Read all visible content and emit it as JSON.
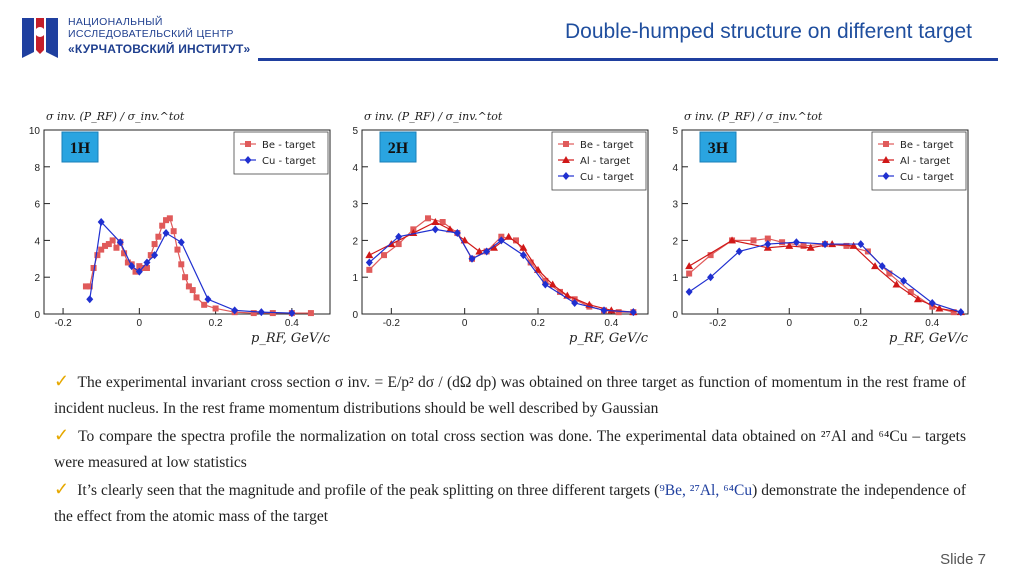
{
  "header": {
    "org_line1": "НАЦИОНАЛЬНЫЙ",
    "org_line2": "ИССЛЕДОВАТЕЛЬСКИЙ ЦЕНТР",
    "org_line3": "«КУРЧАТОВСКИЙ ИНСТИТУТ»",
    "title": "Double-humped structure on different target"
  },
  "chart_data": [
    {
      "type": "line",
      "panel_label": "1H",
      "ylabel": "σ inv. (P_RF) / σ_inv.^tot",
      "xlabel": "p_RF, GeV/c",
      "xlim": [
        -0.25,
        0.5
      ],
      "ylim": [
        0,
        10
      ],
      "xticks": [
        "-0.2",
        "0",
        "0.2",
        "0.4"
      ],
      "yticks": [
        "0",
        "2",
        "4",
        "6",
        "8",
        "10"
      ],
      "legend": "top-right",
      "series": [
        {
          "name": "Be - target",
          "color": "#e05a5a",
          "marker": "square",
          "x": [
            -0.14,
            -0.13,
            -0.12,
            -0.11,
            -0.1,
            -0.09,
            -0.08,
            -0.07,
            -0.06,
            -0.05,
            -0.04,
            -0.03,
            -0.02,
            -0.01,
            0.0,
            0.01,
            0.02,
            0.03,
            0.04,
            0.05,
            0.06,
            0.07,
            0.08,
            0.09,
            0.1,
            0.11,
            0.12,
            0.13,
            0.14,
            0.15,
            0.17,
            0.2,
            0.25,
            0.3,
            0.35,
            0.4,
            0.45
          ],
          "y": [
            1.5,
            1.5,
            2.5,
            3.2,
            3.5,
            3.7,
            3.8,
            4.0,
            3.6,
            3.9,
            3.3,
            2.8,
            2.7,
            2.3,
            2.6,
            2.5,
            2.5,
            3.2,
            3.8,
            4.2,
            4.8,
            5.1,
            5.2,
            4.5,
            3.5,
            2.7,
            2.0,
            1.5,
            1.3,
            0.9,
            0.5,
            0.3,
            0.1,
            0.05,
            0.05,
            0.05,
            0.05
          ]
        },
        {
          "name": "Cu - target",
          "color": "#2030d0",
          "marker": "diamond",
          "x": [
            -0.13,
            -0.1,
            -0.05,
            -0.02,
            0.0,
            0.02,
            0.04,
            0.07,
            0.11,
            0.18,
            0.25,
            0.32,
            0.4
          ],
          "y": [
            0.8,
            5.0,
            3.9,
            2.6,
            2.3,
            2.8,
            3.2,
            4.4,
            3.9,
            0.8,
            0.2,
            0.1,
            0.05
          ]
        }
      ]
    },
    {
      "type": "line",
      "panel_label": "2H",
      "ylabel": "σ inv. (P_RF) / σ_inv.^tot",
      "xlabel": "p_RF, GeV/c",
      "xlim": [
        -0.28,
        0.5
      ],
      "ylim": [
        0,
        5
      ],
      "xticks": [
        "-0.2",
        "0",
        "0.2",
        "0.4"
      ],
      "yticks": [
        "0",
        "1",
        "2",
        "3",
        "4",
        "5"
      ],
      "legend": "top-right",
      "series": [
        {
          "name": "Be - target",
          "color": "#e05a5a",
          "marker": "square",
          "x": [
            -0.26,
            -0.22,
            -0.18,
            -0.14,
            -0.1,
            -0.06,
            -0.02,
            0.02,
            0.06,
            0.1,
            0.14,
            0.18,
            0.22,
            0.26,
            0.3,
            0.34,
            0.38,
            0.42,
            0.46
          ],
          "y": [
            1.2,
            1.6,
            1.9,
            2.3,
            2.6,
            2.5,
            2.2,
            1.5,
            1.7,
            2.1,
            2.0,
            1.4,
            0.9,
            0.6,
            0.4,
            0.2,
            0.1,
            0.05,
            0.05
          ]
        },
        {
          "name": "Al - target",
          "color": "#d01818",
          "marker": "triangle",
          "x": [
            -0.26,
            -0.2,
            -0.14,
            -0.08,
            -0.04,
            0.0,
            0.04,
            0.08,
            0.12,
            0.16,
            0.2,
            0.24,
            0.28,
            0.34,
            0.4,
            0.46
          ],
          "y": [
            1.6,
            1.9,
            2.2,
            2.5,
            2.3,
            2.0,
            1.7,
            1.8,
            2.1,
            1.8,
            1.2,
            0.8,
            0.5,
            0.25,
            0.1,
            0.05
          ]
        },
        {
          "name": "Cu - target",
          "color": "#2030d0",
          "marker": "diamond",
          "x": [
            -0.26,
            -0.18,
            -0.08,
            -0.02,
            0.02,
            0.06,
            0.1,
            0.16,
            0.22,
            0.3,
            0.38,
            0.46
          ],
          "y": [
            1.4,
            2.1,
            2.3,
            2.2,
            1.5,
            1.7,
            2.0,
            1.6,
            0.8,
            0.3,
            0.1,
            0.05
          ]
        }
      ]
    },
    {
      "type": "line",
      "panel_label": "3H",
      "ylabel": "σ inv. (P_RF) / σ_inv.^tot",
      "xlabel": "p_RF, GeV/c",
      "xlim": [
        -0.3,
        0.5
      ],
      "ylim": [
        0,
        5
      ],
      "xticks": [
        "-0.2",
        "0",
        "0.2",
        "0.4"
      ],
      "yticks": [
        "0",
        "1",
        "2",
        "3",
        "4",
        "5"
      ],
      "legend": "top-right",
      "series": [
        {
          "name": "Be - target",
          "color": "#e05a5a",
          "marker": "square",
          "x": [
            -0.28,
            -0.22,
            -0.16,
            -0.1,
            -0.06,
            -0.02,
            0.04,
            0.1,
            0.16,
            0.22,
            0.28,
            0.34,
            0.4,
            0.46
          ],
          "y": [
            1.1,
            1.6,
            2.0,
            2.0,
            2.05,
            1.95,
            1.85,
            1.9,
            1.85,
            1.7,
            1.1,
            0.6,
            0.2,
            0.05
          ]
        },
        {
          "name": "Al - target",
          "color": "#d01818",
          "marker": "triangle",
          "x": [
            -0.28,
            -0.16,
            -0.06,
            0.0,
            0.06,
            0.12,
            0.18,
            0.24,
            0.3,
            0.36,
            0.42,
            0.48
          ],
          "y": [
            1.3,
            2.0,
            1.8,
            1.85,
            1.8,
            1.9,
            1.85,
            1.3,
            0.8,
            0.4,
            0.15,
            0.05
          ]
        },
        {
          "name": "Cu - target",
          "color": "#2030d0",
          "marker": "diamond",
          "x": [
            -0.28,
            -0.22,
            -0.14,
            -0.06,
            0.02,
            0.1,
            0.2,
            0.26,
            0.32,
            0.4,
            0.48
          ],
          "y": [
            0.6,
            1.0,
            1.7,
            1.9,
            1.95,
            1.9,
            1.9,
            1.3,
            0.9,
            0.3,
            0.05
          ]
        }
      ]
    }
  ],
  "text": {
    "b1": "The experimental invariant cross section σ inv. = E/p² dσ / (dΩ dp) was obtained on three target as function of momentum in the rest frame of incident nucleus. In the rest frame momentum distributions should be well described by Gaussian",
    "b2": "To compare the spectra profile the normalization on total cross section was done. The experimental data obtained on ²⁷Al and ⁶⁴Cu – targets were measured at low statistics",
    "b3_pre": "It’s clearly seen that the magnitude and profile of the peak splitting on three different targets (",
    "b3_targets": "⁹Be, ²⁷Al, ⁶⁴Cu",
    "b3_post": ") demonstrate the independence of the effect from the atomic mass of the target"
  },
  "footer": {
    "slide": "Slide 7"
  }
}
